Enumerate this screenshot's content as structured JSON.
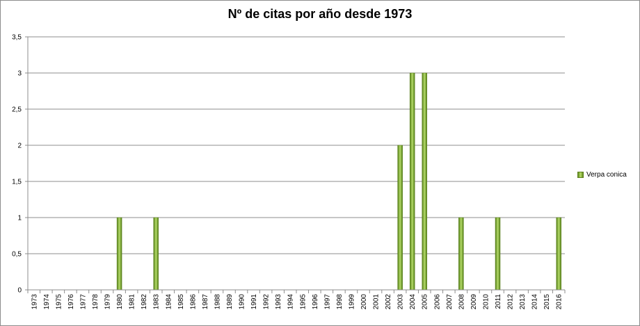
{
  "chart_data": {
    "type": "bar",
    "title": "Nº de citas por año desde 1973",
    "xlabel": "",
    "ylabel": "",
    "ylim": [
      0,
      3.5
    ],
    "yticks": [
      "0",
      "0,5",
      "1",
      "1,5",
      "2",
      "2,5",
      "3",
      "3,5"
    ],
    "grid": true,
    "legend_position": "right",
    "categories": [
      "1973",
      "1974",
      "1975",
      "1976",
      "1977",
      "1978",
      "1979",
      "1980",
      "1981",
      "1982",
      "1983",
      "1984",
      "1985",
      "1986",
      "1987",
      "1988",
      "1989",
      "1990",
      "1991",
      "1992",
      "1993",
      "1994",
      "1995",
      "1996",
      "1997",
      "1998",
      "1999",
      "2000",
      "2001",
      "2002",
      "2003",
      "2004",
      "2005",
      "2006",
      "2007",
      "2008",
      "2009",
      "2010",
      "2011",
      "2012",
      "2013",
      "2014",
      "2015",
      "2016"
    ],
    "series": [
      {
        "name": "Verpa conica",
        "color": "#8cbf3f",
        "values": [
          0,
          0,
          0,
          0,
          0,
          0,
          0,
          1,
          0,
          0,
          1,
          0,
          0,
          0,
          0,
          0,
          0,
          0,
          0,
          0,
          0,
          0,
          0,
          0,
          0,
          0,
          0,
          0,
          0,
          0,
          2,
          3,
          3,
          0,
          0,
          1,
          0,
          0,
          1,
          0,
          0,
          0,
          0,
          1
        ]
      }
    ]
  }
}
